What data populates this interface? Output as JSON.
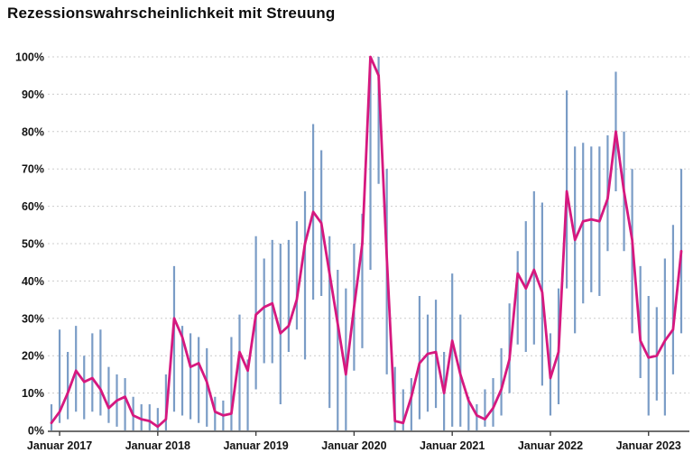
{
  "chart_data": {
    "type": "line",
    "title": "Rezessionswahrscheinlichkeit mit Streuung",
    "xlabel": "",
    "ylabel": "",
    "ylim": [
      0,
      100
    ],
    "grid": "horizontal-dotted",
    "legend_position": "none",
    "y_tick_labels": [
      "0%",
      "10%",
      "20%",
      "30%",
      "40%",
      "50%",
      "60%",
      "70%",
      "80%",
      "90%",
      "100%"
    ],
    "x_ticks": [
      {
        "index": 1,
        "label": "Januar 2017"
      },
      {
        "index": 13,
        "label": "Januar 2018"
      },
      {
        "index": 25,
        "label": "Januar 2019"
      },
      {
        "index": 37,
        "label": "Januar 2020"
      },
      {
        "index": 49,
        "label": "Januar 2021"
      },
      {
        "index": 61,
        "label": "Januar 2022"
      },
      {
        "index": 73,
        "label": "Januar 2023"
      }
    ],
    "months": [
      "2016-12",
      "2017-01",
      "2017-02",
      "2017-03",
      "2017-04",
      "2017-05",
      "2017-06",
      "2017-07",
      "2017-08",
      "2017-09",
      "2017-10",
      "2017-11",
      "2017-12",
      "2018-01",
      "2018-02",
      "2018-03",
      "2018-04",
      "2018-05",
      "2018-06",
      "2018-07",
      "2018-08",
      "2018-09",
      "2018-10",
      "2018-11",
      "2018-12",
      "2019-01",
      "2019-02",
      "2019-03",
      "2019-04",
      "2019-05",
      "2019-06",
      "2019-07",
      "2019-08",
      "2019-09",
      "2019-10",
      "2019-11",
      "2019-12",
      "2020-01",
      "2020-02",
      "2020-03",
      "2020-04",
      "2020-05",
      "2020-06",
      "2020-07",
      "2020-08",
      "2020-09",
      "2020-10",
      "2020-11",
      "2020-12",
      "2021-01",
      "2021-02",
      "2021-03",
      "2021-04",
      "2021-05",
      "2021-06",
      "2021-07",
      "2021-08",
      "2021-09",
      "2021-10",
      "2021-11",
      "2021-12",
      "2022-01",
      "2022-02",
      "2022-03",
      "2022-04",
      "2022-05",
      "2022-06",
      "2022-07",
      "2022-08",
      "2022-09",
      "2022-10",
      "2022-11",
      "2022-12",
      "2023-01",
      "2023-02",
      "2023-03",
      "2023-04",
      "2023-05"
    ],
    "series": [
      {
        "name": "Rezessionswahrscheinlichkeit",
        "type": "line",
        "color": "#d6187f",
        "values": [
          2,
          5,
          10,
          16,
          13,
          14,
          11,
          6,
          8,
          9,
          4,
          3,
          2.5,
          1,
          3,
          30,
          25,
          17,
          18,
          13,
          5,
          4,
          4.5,
          21,
          16,
          31,
          33,
          34,
          26,
          28,
          35,
          50,
          58.5,
          55.5,
          42,
          28.5,
          15,
          33,
          50,
          100,
          95,
          46,
          2.5,
          2,
          9,
          18,
          20.5,
          21,
          10,
          24,
          15,
          8,
          4,
          3,
          6,
          11,
          19,
          42,
          38,
          43,
          37,
          14,
          21,
          64,
          51,
          56,
          56.5,
          56,
          62,
          80,
          64,
          51,
          24,
          19.5,
          20,
          24,
          27,
          48
        ]
      },
      {
        "name": "Streuung",
        "type": "range-bars",
        "color": "#6f94c2",
        "low": [
          0,
          2,
          3,
          5,
          3,
          5,
          4,
          2,
          1,
          0,
          0,
          0,
          0,
          0,
          0,
          5,
          4,
          3,
          2,
          1,
          0,
          0,
          0,
          0,
          0,
          11,
          18,
          18,
          7,
          21,
          27,
          19,
          35,
          36,
          6,
          0,
          0,
          16,
          22,
          43,
          66,
          15,
          0,
          0,
          0,
          3,
          5,
          6,
          0,
          1,
          1,
          0,
          0,
          1,
          1,
          4,
          10,
          23,
          21,
          23,
          12,
          4,
          7,
          38,
          26,
          34,
          37,
          36,
          48,
          64,
          48,
          26,
          14,
          4,
          8,
          4,
          15,
          26
        ],
        "high": [
          7,
          27,
          21,
          28,
          20,
          26,
          27,
          17,
          15,
          14,
          9,
          7,
          7,
          6,
          15,
          44,
          28,
          26,
          25,
          22,
          9,
          8,
          25,
          31,
          19,
          52,
          46,
          51,
          50,
          51,
          56,
          64,
          82,
          75,
          52,
          43,
          38,
          50,
          58,
          100,
          100,
          70,
          17,
          11,
          14,
          36,
          31,
          35,
          21,
          42,
          31,
          9,
          7,
          11,
          14,
          22,
          34,
          48,
          56,
          64,
          61,
          26,
          38,
          91,
          76,
          77,
          76,
          76,
          79,
          96,
          80,
          70,
          44,
          36,
          33,
          46,
          55,
          70
        ]
      }
    ],
    "colors": {
      "line": "#d6187f",
      "bars": "#6f94c2",
      "grid": "#cccccc",
      "axis": "#3f3f3f",
      "text": "#141414",
      "background": "#ffffff"
    }
  }
}
